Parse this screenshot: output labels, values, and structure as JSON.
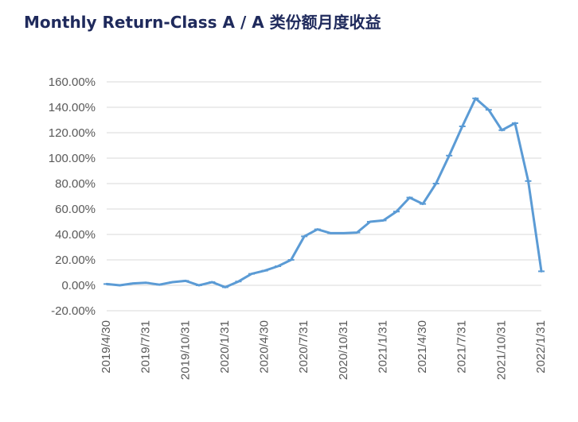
{
  "chart_data": {
    "type": "line",
    "title": "Monthly Return-Class A / A 类份额月度收益",
    "ylim": [
      -20,
      160
    ],
    "yticks": [
      -20,
      0,
      20,
      40,
      60,
      80,
      100,
      120,
      140,
      160
    ],
    "ytick_labels": [
      "-20.00%",
      "0.00%",
      "20.00%",
      "40.00%",
      "60.00%",
      "80.00%",
      "100.00%",
      "120.00%",
      "140.00%",
      "160.00%"
    ],
    "x": [
      "2019/4/30",
      "2019/5/31",
      "2019/6/30",
      "2019/7/31",
      "2019/8/31",
      "2019/9/30",
      "2019/10/31",
      "2019/11/30",
      "2019/12/31",
      "2020/1/31",
      "2020/2/29",
      "2020/3/31",
      "2020/4/30",
      "2020/5/31",
      "2020/6/30",
      "2020/7/31",
      "2020/8/31",
      "2020/9/30",
      "2020/10/31",
      "2020/11/30",
      "2020/12/31",
      "2021/1/31",
      "2021/2/28",
      "2021/3/31",
      "2021/4/30",
      "2021/5/31",
      "2021/6/30",
      "2021/7/31",
      "2021/8/31",
      "2021/9/30",
      "2021/10/31",
      "2021/11/30",
      "2021/12/31",
      "2022/1/31"
    ],
    "xtick_labels": [
      "2019/4/30",
      "2019/7/31",
      "2019/10/31",
      "2020/1/31",
      "2020/4/30",
      "2020/7/31",
      "2020/10/31",
      "2021/1/31",
      "2021/4/30",
      "2021/7/31",
      "2021/10/31",
      "2022/1/31"
    ],
    "series": [
      {
        "values": [
          1,
          0,
          1.5,
          2,
          0.5,
          2.5,
          3.5,
          0,
          2.5,
          -1.5,
          3,
          9,
          11.5,
          15,
          20,
          38.5,
          44,
          41,
          41,
          41.5,
          50,
          51,
          58,
          69,
          64,
          80,
          102,
          125,
          147,
          138,
          122,
          127.5,
          82,
          11
        ],
        "color": "#5b9bd5"
      }
    ],
    "grid": true,
    "legend": "none"
  }
}
